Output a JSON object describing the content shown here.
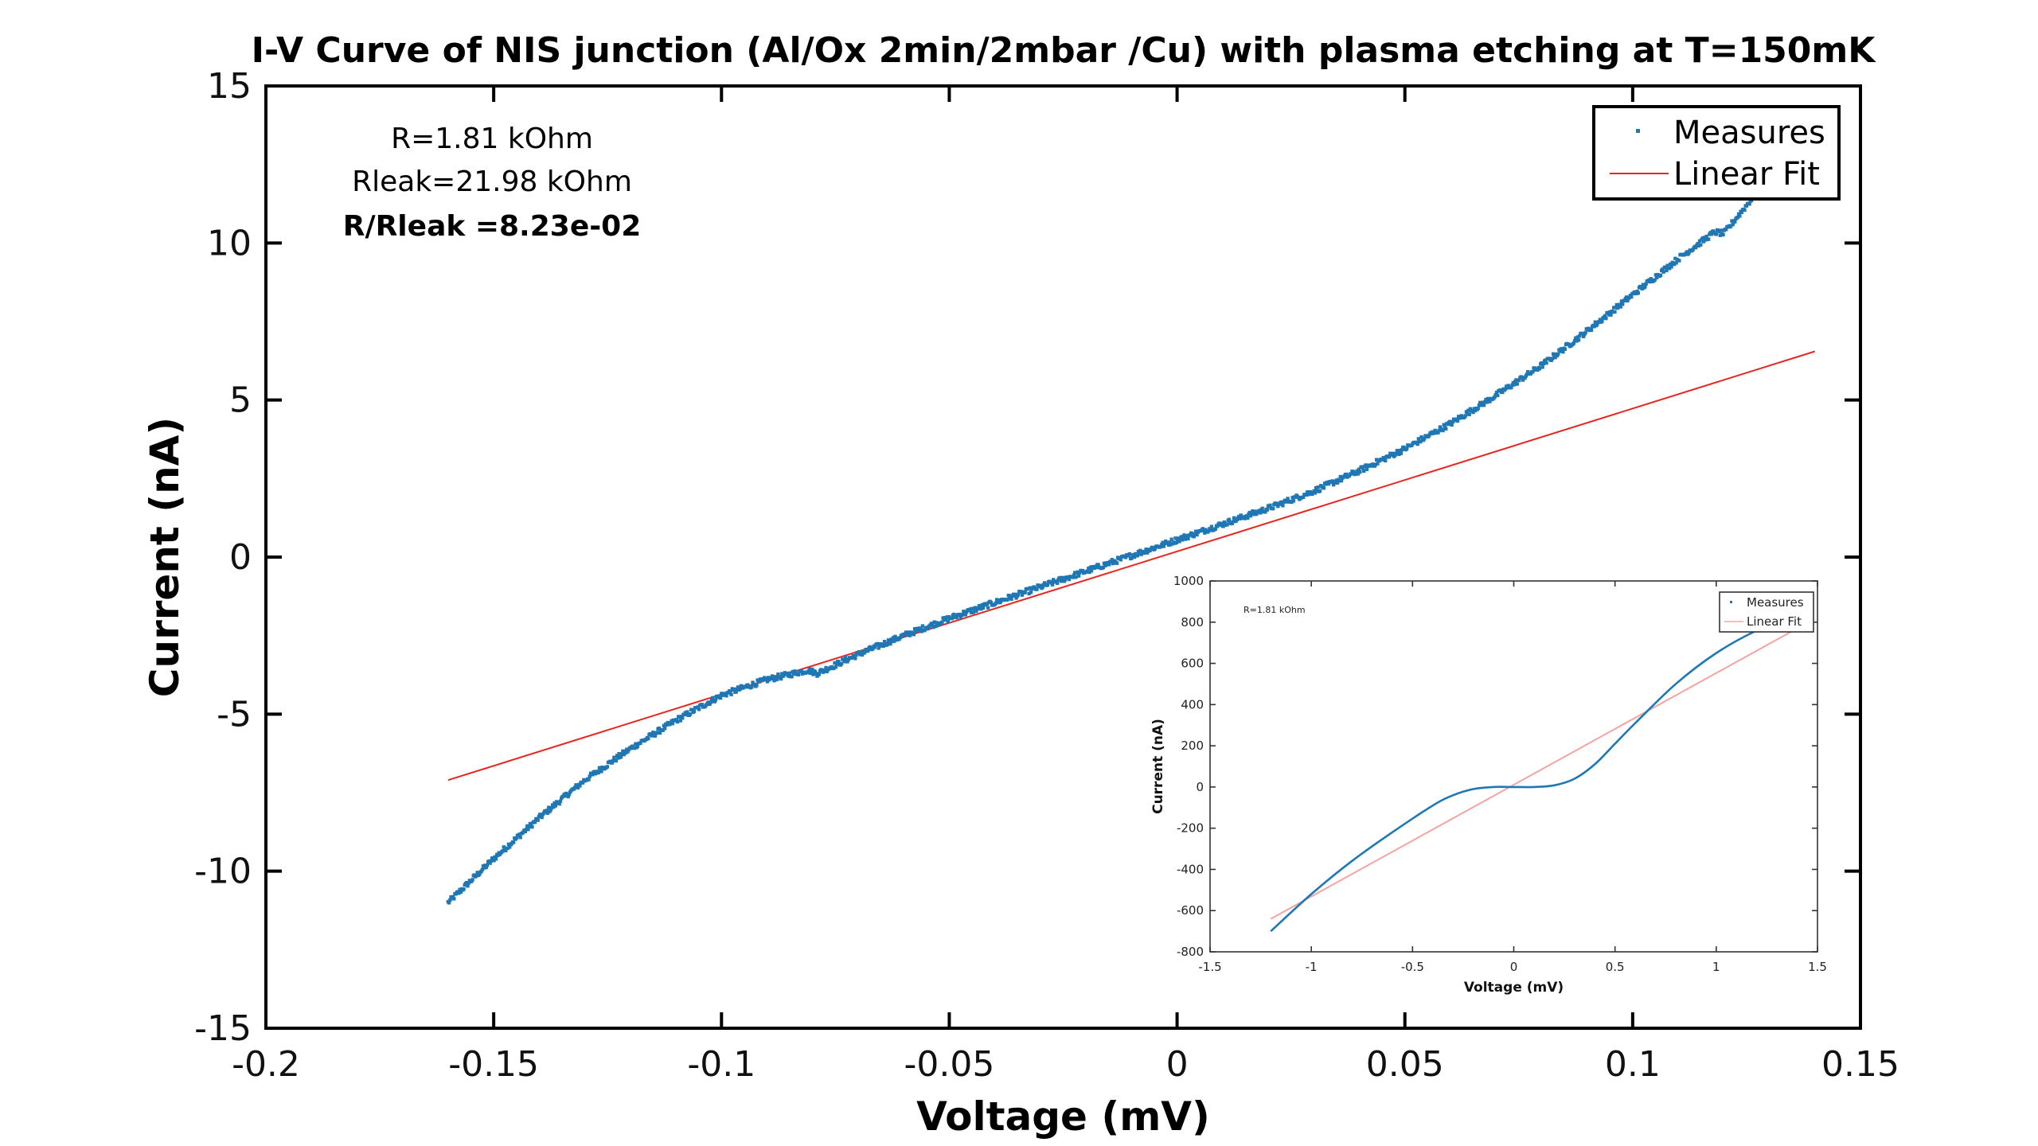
{
  "chart_data": [
    {
      "type": "scatter",
      "title": "I-V Curve of NIS junction (Al/Ox 2min/2mbar /Cu) with plasma etching at T=150mK",
      "xlabel": "Voltage (mV)",
      "ylabel": "Current (nA)",
      "xlim": [
        -0.2,
        0.15
      ],
      "ylim": [
        -15,
        15
      ],
      "xticks": [
        -0.2,
        -0.15,
        -0.1,
        -0.05,
        0,
        0.05,
        0.1,
        0.15
      ],
      "xtick_labels": [
        "-0.2",
        "-0.15",
        "-0.1",
        "-0.05",
        "0",
        "0.05",
        "0.1",
        "0.15"
      ],
      "yticks": [
        15,
        10,
        5,
        0,
        -5,
        -10,
        -15
      ],
      "ytick_labels": [
        "15",
        "10",
        "5",
        "0",
        "-5",
        "-10",
        "-15"
      ],
      "grid": false,
      "legend_position": "top-right",
      "legend": [
        "Measures",
        "Linear Fit"
      ],
      "annotations": [
        "R=1.81 kOhm",
        "Rleak=21.98 kOhm",
        "R/Rleak =8.23e-02"
      ],
      "series": [
        {
          "name": "Measures",
          "style": "points",
          "color": "#1f77b4",
          "x": [
            -0.16,
            -0.15,
            -0.14,
            -0.13,
            -0.12,
            -0.11,
            -0.1,
            -0.09,
            -0.081,
            -0.079,
            -0.07,
            -0.06,
            -0.05,
            -0.04,
            -0.03,
            -0.02,
            -0.01,
            0,
            0.01,
            0.02,
            0.03,
            0.04,
            0.05,
            0.06,
            0.07,
            0.08,
            0.09,
            0.1,
            0.11,
            0.118,
            0.12,
            0.13,
            0.14
          ],
          "y": [
            -11.0,
            -9.6,
            -8.3,
            -7.1,
            -6.1,
            -5.2,
            -4.4,
            -3.9,
            -3.6,
            -3.7,
            -3.1,
            -2.5,
            -1.95,
            -1.45,
            -0.95,
            -0.45,
            0.05,
            0.55,
            1.05,
            1.55,
            2.1,
            2.75,
            3.45,
            4.25,
            5.15,
            6.1,
            7.2,
            8.35,
            9.5,
            10.35,
            10.3,
            12.1,
            14.0
          ]
        },
        {
          "name": "Linear Fit",
          "style": "line",
          "color": "#e8261f",
          "x": [
            -0.16,
            0.14
          ],
          "y": [
            -7.1,
            6.55
          ]
        }
      ]
    },
    {
      "type": "line",
      "title": "",
      "xlabel": "Voltage (mV)",
      "ylabel": "Current (nA)",
      "xlim": [
        -1.5,
        1.5
      ],
      "ylim": [
        -800,
        1000
      ],
      "xticks": [
        -1.5,
        -1,
        -0.5,
        0,
        0.5,
        1,
        1.5
      ],
      "xtick_labels": [
        "-1.5",
        "-1",
        "-0.5",
        "0",
        "0.5",
        "1",
        "1.5"
      ],
      "yticks": [
        1000,
        800,
        600,
        400,
        200,
        0,
        -200,
        -400,
        -600,
        -800
      ],
      "ytick_labels": [
        "1000",
        "800",
        "600",
        "400",
        "200",
        "0",
        "-200",
        "-400",
        "-600",
        "-800"
      ],
      "grid": false,
      "legend_position": "top-right",
      "legend": [
        "Measures",
        "Linear Fit"
      ],
      "annotations": [
        "R=1.81 kOhm"
      ],
      "series": [
        {
          "name": "Measures",
          "style": "line",
          "color": "#1f77b4",
          "x": [
            -1.2,
            -1.0,
            -0.8,
            -0.6,
            -0.4,
            -0.3,
            -0.2,
            -0.1,
            0,
            0.1,
            0.2,
            0.3,
            0.4,
            0.5,
            0.6,
            0.8,
            1.0,
            1.2,
            1.4
          ],
          "y": [
            -700,
            -520,
            -360,
            -220,
            -90,
            -40,
            -10,
            0,
            0,
            0,
            8,
            40,
            110,
            210,
            310,
            500,
            650,
            760,
            840
          ]
        },
        {
          "name": "Linear Fit",
          "style": "line",
          "color": "#f4a3a3",
          "x": [
            -1.2,
            1.4
          ],
          "y": [
            -640,
            770
          ]
        }
      ]
    }
  ]
}
